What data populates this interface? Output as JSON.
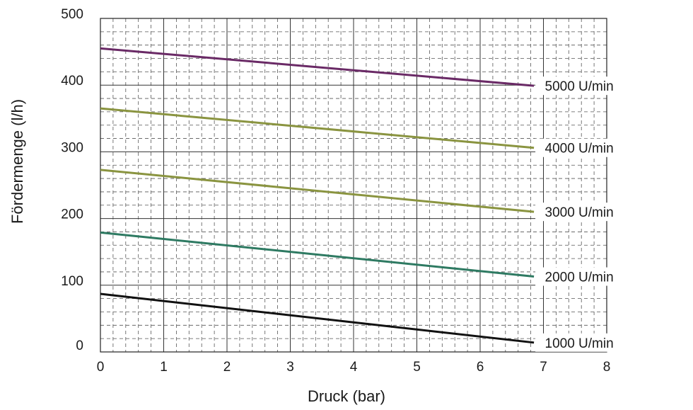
{
  "chart_data": {
    "type": "line",
    "title": "",
    "xlabel": "Druck (bar)",
    "ylabel": "Fördermenge (l/h)",
    "xlim": [
      0,
      8
    ],
    "ylim": [
      0,
      500
    ],
    "x_ticks": [
      "0",
      "1",
      "2",
      "3",
      "4",
      "5",
      "6",
      "7",
      "8"
    ],
    "y_ticks": [
      "0",
      "100",
      "200",
      "300",
      "400",
      "500"
    ],
    "grid": true,
    "legend": "none",
    "series": [
      {
        "name": "1000 U/min",
        "x": [
          0,
          6.85
        ],
        "y": [
          87,
          14
        ],
        "color": "#111111"
      },
      {
        "name": "2000 U/min",
        "x": [
          0,
          6.85
        ],
        "y": [
          179,
          113
        ],
        "color": "#2e7a62"
      },
      {
        "name": "3000 U/min",
        "x": [
          0,
          6.85
        ],
        "y": [
          273,
          210
        ],
        "color": "#8a9440"
      },
      {
        "name": "4000 U/min",
        "x": [
          0,
          6.85
        ],
        "y": [
          365,
          306
        ],
        "color": "#8a9440"
      },
      {
        "name": "5000 U/min",
        "x": [
          0,
          6.85
        ],
        "y": [
          455,
          399
        ],
        "color": "#6a2a66"
      }
    ]
  }
}
